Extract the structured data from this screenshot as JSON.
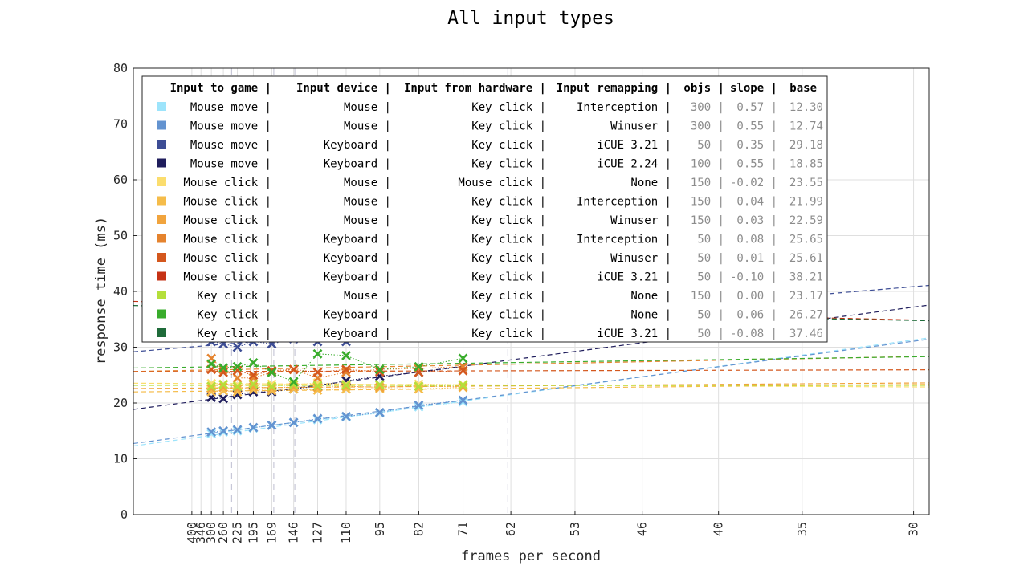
{
  "chart_data": {
    "type": "line",
    "title": "All input types",
    "xlabel": "frames per second",
    "ylabel": "response time (ms)",
    "ylim": [
      0,
      80
    ],
    "yticks": [
      0,
      10,
      20,
      30,
      40,
      50,
      60,
      70,
      80
    ],
    "xlim_period_ms": [
      0,
      34
    ],
    "xticks": [
      "400",
      "346",
      "300",
      "260",
      "225",
      "195",
      "169",
      "146",
      "127",
      "110",
      "95",
      "82",
      "71",
      "62",
      "53",
      "46",
      "40",
      "35",
      "30"
    ],
    "x_scale": "reciprocal",
    "grid": true,
    "legend_position": "top-left",
    "legend_header": {
      "game": "Input to game |",
      "device": "Input device |",
      "hardware": "Input from hardware |",
      "remap": "Input remapping |",
      "objs": "objs |",
      "slope": "slope |",
      "base": "base"
    },
    "series": [
      {
        "game": "Mouse move |",
        "device": "Mouse |",
        "hardware": "Key click |",
        "remap": "Interception |",
        "objs": "300 |",
        "slope": "0.57 |",
        "base": "12.30",
        "color": "#9de4fb",
        "slope_val": 0.57,
        "base_val": 12.3,
        "x": [
          300,
          260,
          225,
          195,
          169,
          146,
          127,
          110,
          95,
          82,
          71
        ],
        "mean": [
          14.5,
          14.8,
          15.0,
          15.5,
          16.0,
          16.5,
          17.0,
          17.5,
          18.2,
          19.3,
          20.2
        ]
      },
      {
        "game": "Mouse move |",
        "device": "Mouse |",
        "hardware": "Key click |",
        "remap": "Winuser |",
        "objs": "300 |",
        "slope": "0.55 |",
        "base": "12.74",
        "color": "#6393d0",
        "slope_val": 0.55,
        "base_val": 12.74,
        "x": [
          300,
          260,
          225,
          195,
          169,
          146,
          127,
          110,
          95,
          82,
          71
        ],
        "mean": [
          14.8,
          15.0,
          15.2,
          15.6,
          16.0,
          16.5,
          17.2,
          17.6,
          18.3,
          19.6,
          20.5
        ]
      },
      {
        "game": "Mouse move |",
        "device": "Keyboard |",
        "hardware": "Key click |",
        "remap": "iCUE 3.21 |",
        "objs": "50 |",
        "slope": "0.35 |",
        "base": "29.18",
        "color": "#3d4d95",
        "slope_val": 0.35,
        "base_val": 29.18,
        "x": [
          300,
          260,
          225,
          195,
          169,
          146,
          127,
          110,
          95,
          82,
          71
        ],
        "mean": [
          31.0,
          30.6,
          30.0,
          31.0,
          30.6,
          31.5,
          31.0,
          31.0,
          32.0,
          32.0,
          33.0
        ]
      },
      {
        "game": "Mouse move |",
        "device": "Keyboard |",
        "hardware": "Key click |",
        "remap": "iCUE 2.24 |",
        "objs": "100 |",
        "slope": "0.55 |",
        "base": "18.85",
        "color": "#1f1d5c",
        "slope_val": 0.55,
        "base_val": 18.85,
        "x": [
          300,
          260,
          225,
          195,
          169,
          146,
          127,
          110,
          95,
          82,
          71
        ],
        "mean": [
          21.0,
          20.8,
          21.5,
          22.0,
          22.0,
          22.5,
          23.0,
          24.0,
          24.8,
          25.5,
          26.5
        ]
      },
      {
        "game": "Mouse click |",
        "device": "Mouse |",
        "hardware": "Mouse click |",
        "remap": "None |",
        "objs": "150 |",
        "slope": "-0.02 |",
        "base": "23.55",
        "color": "#fbdd6e",
        "slope_val": -0.02,
        "base_val": 23.55,
        "x": [
          300,
          260,
          225,
          195,
          169,
          146,
          127,
          110,
          95,
          82,
          71
        ],
        "mean": [
          23.5,
          23.4,
          23.3,
          23.5,
          23.4,
          23.3,
          23.6,
          23.4,
          23.2,
          23.4,
          23.3
        ]
      },
      {
        "game": "Mouse click |",
        "device": "Mouse |",
        "hardware": "Key click |",
        "remap": "Interception |",
        "objs": "150 |",
        "slope": "0.04 |",
        "base": "21.99",
        "color": "#f5bc4a",
        "slope_val": 0.04,
        "base_val": 21.99,
        "x": [
          300,
          260,
          225,
          195,
          169,
          146,
          127,
          110,
          95,
          82,
          71
        ],
        "mean": [
          22.0,
          22.2,
          22.0,
          22.4,
          22.2,
          22.5,
          22.3,
          22.5,
          22.6,
          22.5,
          22.8
        ]
      },
      {
        "game": "Mouse click |",
        "device": "Mouse |",
        "hardware": "Key click |",
        "remap": "Winuser |",
        "objs": "150 |",
        "slope": "0.03 |",
        "base": "22.59",
        "color": "#f1a43d",
        "slope_val": 0.03,
        "base_val": 22.59,
        "x": [
          300,
          260,
          225,
          195,
          169,
          146,
          127,
          110,
          95,
          82,
          71
        ],
        "mean": [
          22.6,
          22.8,
          22.5,
          22.9,
          22.7,
          22.9,
          22.8,
          23.0,
          22.8,
          23.0,
          22.9
        ]
      },
      {
        "game": "Mouse click |",
        "device": "Keyboard |",
        "hardware": "Key click |",
        "remap": "Interception |",
        "objs": "50 |",
        "slope": "0.08 |",
        "base": "25.65",
        "color": "#e5832e",
        "slope_val": 0.08,
        "base_val": 25.65,
        "x": [
          300,
          260,
          225,
          195,
          169,
          146,
          127,
          110,
          95,
          82,
          71
        ],
        "mean": [
          28.0,
          26.0,
          24.5,
          24.5,
          25.5,
          26.0,
          24.5,
          25.5,
          26.0,
          26.2,
          26.5
        ]
      },
      {
        "game": "Mouse click |",
        "device": "Keyboard |",
        "hardware": "Key click |",
        "remap": "Winuser |",
        "objs": "50 |",
        "slope": "0.01 |",
        "base": "25.61",
        "color": "#d4571d",
        "slope_val": 0.01,
        "base_val": 25.61,
        "x": [
          300,
          260,
          225,
          195,
          169,
          146,
          127,
          110,
          95,
          82,
          71
        ],
        "mean": [
          26.0,
          25.5,
          25.8,
          25.0,
          25.8,
          26.0,
          25.5,
          26.0,
          25.6,
          25.5,
          25.8
        ]
      },
      {
        "game": "Mouse click |",
        "device": "Keyboard |",
        "hardware": "Key click |",
        "remap": "iCUE 3.21 |",
        "objs": "50 |",
        "slope": "-0.10 |",
        "base": "38.21",
        "color": "#c63215",
        "slope_val": -0.1,
        "base_val": 38.21,
        "x": [
          300,
          260,
          225,
          195,
          169,
          146,
          127,
          110,
          95,
          82,
          71
        ],
        "mean": [
          38.0,
          38.2,
          37.8,
          38.0,
          38.1,
          37.9,
          38.0,
          37.7,
          37.8,
          37.5,
          37.4
        ]
      },
      {
        "game": "Key click |",
        "device": "Mouse |",
        "hardware": "Key click |",
        "remap": "None |",
        "objs": "150 |",
        "slope": "0.00 |",
        "base": "23.17",
        "color": "#b4df3b",
        "slope_val": 0.0,
        "base_val": 23.17,
        "x": [
          300,
          260,
          225,
          195,
          169,
          146,
          127,
          110,
          95,
          82,
          71
        ],
        "mean": [
          23.0,
          23.3,
          23.0,
          23.4,
          23.0,
          23.3,
          23.1,
          23.2,
          23.3,
          23.0,
          23.2
        ]
      },
      {
        "game": "Key click |",
        "device": "Keyboard |",
        "hardware": "Key click |",
        "remap": "None |",
        "objs": "50 |",
        "slope": "0.06 |",
        "base": "26.27",
        "color": "#39ac2c",
        "slope_val": 0.06,
        "base_val": 26.27,
        "x": [
          300,
          260,
          225,
          195,
          169,
          146,
          127,
          110,
          95,
          82,
          71
        ],
        "mean": [
          27.0,
          26.3,
          26.5,
          27.2,
          25.5,
          23.8,
          28.8,
          28.5,
          26.0,
          26.5,
          28.0
        ]
      },
      {
        "game": "Key click |",
        "device": "Keyboard |",
        "hardware": "Key click |",
        "remap": "iCUE 3.21 |",
        "objs": "50 |",
        "slope": "-0.08 |",
        "base": "37.46",
        "color": "#1f6b3a",
        "slope_val": -0.08,
        "base_val": 37.46,
        "x": [
          300,
          260,
          225,
          195,
          169,
          146,
          127,
          110,
          95,
          82,
          71
        ],
        "mean": [
          37.5,
          37.4,
          37.2,
          37.6,
          37.3,
          37.0,
          37.4,
          37.1,
          36.9,
          37.0,
          36.8
        ]
      }
    ]
  }
}
